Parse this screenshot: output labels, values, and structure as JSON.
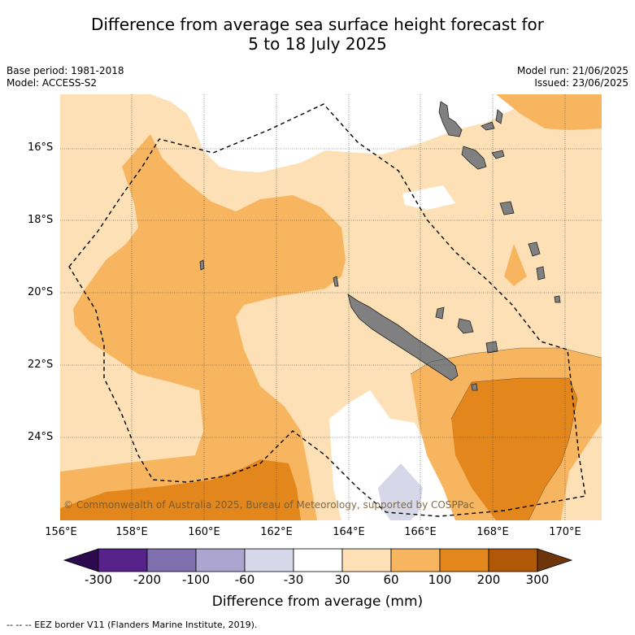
{
  "title_line1": "Difference from average sea surface height forecast for",
  "title_line2": "5 to 18 July 2025",
  "meta_left": [
    "Base period: 1981-2018",
    "Model: ACCESS-S2"
  ],
  "meta_right": [
    "Model run: 21/06/2025",
    "Issued: 23/06/2025"
  ],
  "map": {
    "lat_labels": [
      "16°S",
      "18°S",
      "20°S",
      "22°S",
      "24°S"
    ],
    "lon_labels": [
      "156°E",
      "158°E",
      "160°E",
      "162°E",
      "164°E",
      "166°E",
      "168°E",
      "170°E"
    ],
    "copyright": "© Commonwealth of Australia 2025, Bureau of Meteorology, supported by COSPPac"
  },
  "colorbar": {
    "ticks": [
      "-300",
      "-200",
      "-100",
      "-60",
      "-30",
      "30",
      "60",
      "100",
      "200",
      "300"
    ],
    "colors": [
      "#2d0a4e",
      "#57238a",
      "#7f6fae",
      "#aca5cf",
      "#d7d7ea",
      "#ffffff",
      "#fde0b6",
      "#f8b560",
      "#e3861b",
      "#b15708",
      "#6e350a"
    ],
    "title": "Difference from average (mm)"
  },
  "footnote": "--  --  -- EEZ border V11 (Flanders Marine Institute, 2019).",
  "fill_colors": {
    "band_30_60": "#fde0b6",
    "band_60_100": "#f8b560",
    "band_100_200": "#e3861b",
    "band_neg_60_30": "#d7d7ea",
    "land": "#808080"
  }
}
